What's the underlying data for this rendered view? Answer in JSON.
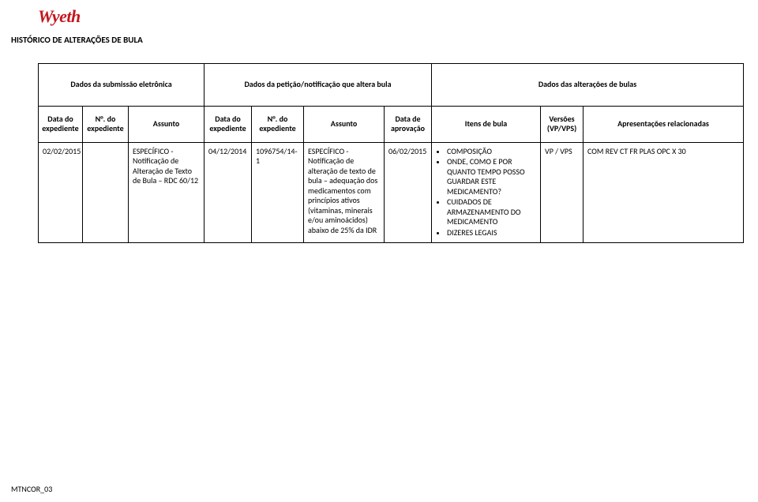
{
  "brand": {
    "name": "Wyeth",
    "color": "#c4161c"
  },
  "title": "HISTÓRICO DE ALTERAÇÕES DE BULA",
  "groupHeaders": [
    "Dados da submissão eletrônica",
    "Dados da petição/notificação que altera bula",
    "Dados das alterações de bulas"
  ],
  "columns": [
    "Data do expediente",
    "N°. do expediente",
    "Assunto",
    "Data do expediente",
    "N°. do expediente",
    "Assunto",
    "Data de aprovação",
    "Itens de bula",
    "Versões (VP/VPS)",
    "Apresentações relacionadas"
  ],
  "row": {
    "c0": "02/02/2015",
    "c1": "",
    "c2": "ESPECÍFICO - Notificação de Alteração de Texto de Bula – RDC 60/12",
    "c3": "04/12/2014",
    "c4": "1096754/14-1",
    "c5": "ESPECÍFICO - Notificação de alteração de texto de bula – adequação dos medicamentos com princípios ativos (vitaminas, minerais e/ou aminoácidos) abaixo de 25% da IDR",
    "c6": "06/02/2015",
    "c7_items": [
      "COMPOSIÇÃO",
      "ONDE, COMO E POR QUANTO TEMPO POSSO GUARDAR ESTE MEDICAMENTO?",
      "CUIDADOS DE ARMAZENAMENTO DO MEDICAMENTO",
      "DIZERES LEGAIS"
    ],
    "c8": "VP / VPS",
    "c9": "COM REV CT FR PLAS OPC X 30"
  },
  "footer": "MTNCOR_03"
}
